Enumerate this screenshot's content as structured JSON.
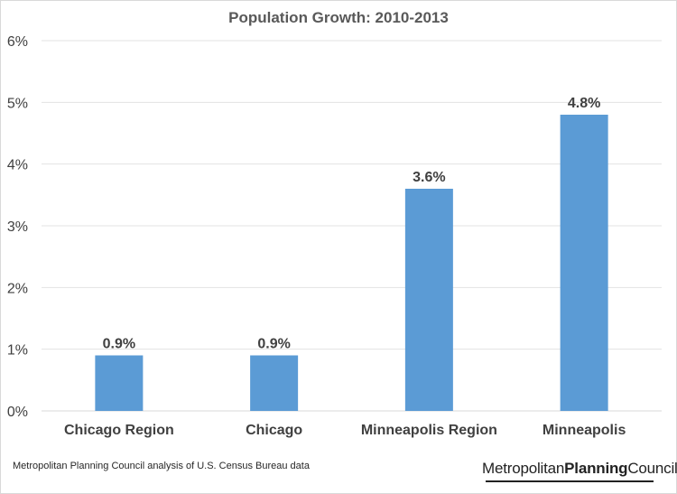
{
  "chart_data": {
    "type": "bar",
    "title": "Population Growth:  2010-2013",
    "categories": [
      "Chicago Region",
      "Chicago",
      "Minneapolis Region",
      "Minneapolis"
    ],
    "values": [
      0.9,
      0.9,
      3.6,
      4.8
    ],
    "data_labels": [
      "0.9%",
      "0.9%",
      "3.6%",
      "4.8%"
    ],
    "y_ticks": [
      "0%",
      "1%",
      "2%",
      "3%",
      "4%",
      "5%",
      "6%"
    ],
    "ylim": [
      0,
      6
    ],
    "grid": true,
    "bar_color": "#5b9bd5",
    "xlabel": "",
    "ylabel": ""
  },
  "footer": {
    "source": "Metropolitan Planning Council analysis of U.S. Census Bureau data",
    "logo_part1": "Metropolitan",
    "logo_part2": "Planning",
    "logo_part3": "Council"
  }
}
